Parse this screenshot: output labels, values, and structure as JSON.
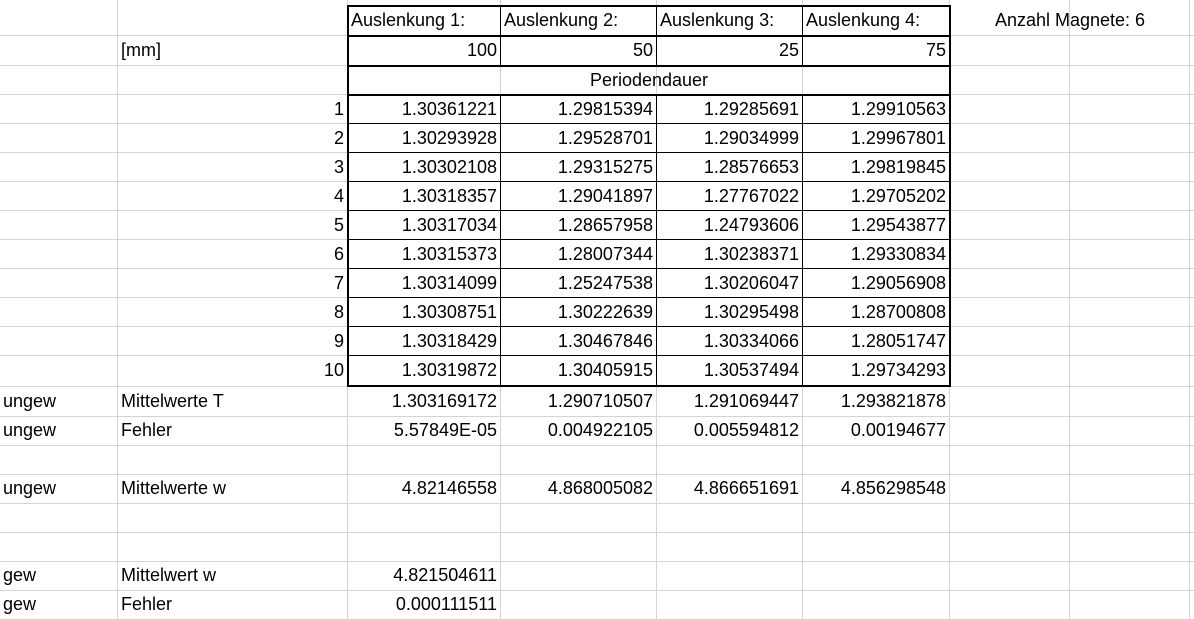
{
  "header": {
    "auslenkung": [
      "Auslenkung 1:",
      "Auslenkung 2:",
      "Auslenkung 3:",
      "Auslenkung 4:"
    ],
    "anzahl_magnete": "Anzahl Magnete: 6",
    "unit": "[mm]",
    "values": [
      "100",
      "50",
      "25",
      "75"
    ],
    "periodendauer": "Periodendauer"
  },
  "measurements": {
    "row_numbers": [
      "1",
      "2",
      "3",
      "4",
      "5",
      "6",
      "7",
      "8",
      "9",
      "10"
    ],
    "rows": [
      [
        "1.30361221",
        "1.29815394",
        "1.29285691",
        "1.29910563"
      ],
      [
        "1.30293928",
        "1.29528701",
        "1.29034999",
        "1.29967801"
      ],
      [
        "1.30302108",
        "1.29315275",
        "1.28576653",
        "1.29819845"
      ],
      [
        "1.30318357",
        "1.29041897",
        "1.27767022",
        "1.29705202"
      ],
      [
        "1.30317034",
        "1.28657958",
        "1.24793606",
        "1.29543877"
      ],
      [
        "1.30315373",
        "1.28007344",
        "1.30238371",
        "1.29330834"
      ],
      [
        "1.30314099",
        "1.25247538",
        "1.30206047",
        "1.29056908"
      ],
      [
        "1.30308751",
        "1.30222639",
        "1.30295498",
        "1.28700808"
      ],
      [
        "1.30318429",
        "1.30467846",
        "1.30334066",
        "1.28051747"
      ],
      [
        "1.30319872",
        "1.30405915",
        "1.30537494",
        "1.29734293"
      ]
    ]
  },
  "results": {
    "mean_T": {
      "tag": "ungew",
      "label": "Mittelwerte T",
      "values": [
        "1.303169172",
        "1.290710507",
        "1.291069447",
        "1.293821878"
      ]
    },
    "error": {
      "tag": "ungew",
      "label": "Fehler",
      "values": [
        "5.57849E-05",
        "0.004922105",
        "0.005594812",
        "0.00194677"
      ]
    },
    "mean_w": {
      "tag": "ungew",
      "label": "Mittelwerte w",
      "values": [
        "4.82146558",
        "4.868005082",
        "4.866651691",
        "4.856298548"
      ]
    },
    "weighted_mean": {
      "tag": "gew",
      "label": "Mittelwert w",
      "value": "4.821504611"
    },
    "weighted_error": {
      "tag": "gew",
      "label": "Fehler",
      "value": "0.000111511"
    }
  }
}
